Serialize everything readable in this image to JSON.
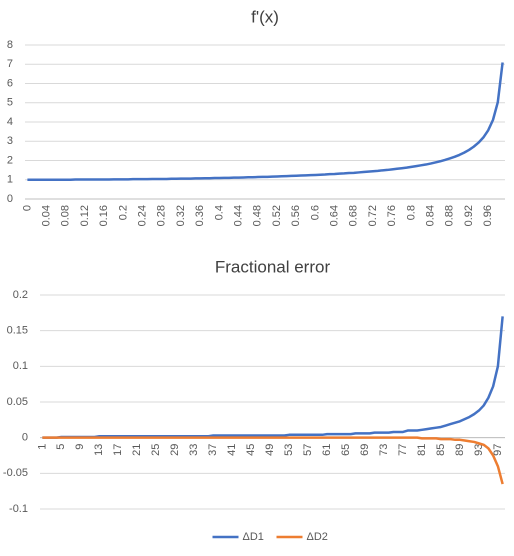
{
  "chart_data": [
    {
      "type": "line",
      "title": "f'(x)",
      "categories": [
        "0",
        null,
        null,
        null,
        "0.04",
        null,
        null,
        null,
        "0.08",
        null,
        null,
        null,
        "0.12",
        null,
        null,
        null,
        "0.16",
        null,
        null,
        null,
        "0.2",
        null,
        null,
        null,
        "0.24",
        null,
        null,
        null,
        "0.28",
        null,
        null,
        null,
        "0.32",
        null,
        null,
        null,
        "0.36",
        null,
        null,
        null,
        "0.4",
        null,
        null,
        null,
        "0.44",
        null,
        null,
        null,
        "0.48",
        null,
        null,
        null,
        "0.52",
        null,
        null,
        null,
        "0.56",
        null,
        null,
        null,
        "0.6",
        null,
        null,
        null,
        "0.64",
        null,
        null,
        null,
        "0.68",
        null,
        null,
        null,
        "0.72",
        null,
        null,
        null,
        "0.76",
        null,
        null,
        null,
        "0.8",
        null,
        null,
        null,
        "0.84",
        null,
        null,
        null,
        "0.88",
        null,
        null,
        null,
        "0.92",
        null,
        null,
        null,
        "0.96",
        null,
        null,
        null
      ],
      "values": [
        1.0,
        1.0,
        1.0,
        1.0,
        1.0,
        1.0,
        1.0,
        1.0,
        1.0,
        1.0,
        1.01,
        1.01,
        1.01,
        1.01,
        1.01,
        1.01,
        1.01,
        1.01,
        1.02,
        1.02,
        1.02,
        1.02,
        1.03,
        1.03,
        1.03,
        1.03,
        1.04,
        1.04,
        1.04,
        1.04,
        1.05,
        1.05,
        1.06,
        1.06,
        1.06,
        1.07,
        1.07,
        1.08,
        1.08,
        1.09,
        1.09,
        1.1,
        1.1,
        1.11,
        1.11,
        1.12,
        1.13,
        1.13,
        1.14,
        1.15,
        1.15,
        1.16,
        1.17,
        1.18,
        1.19,
        1.2,
        1.21,
        1.22,
        1.23,
        1.24,
        1.25,
        1.26,
        1.27,
        1.29,
        1.3,
        1.32,
        1.33,
        1.35,
        1.36,
        1.38,
        1.4,
        1.42,
        1.44,
        1.46,
        1.49,
        1.51,
        1.54,
        1.57,
        1.6,
        1.63,
        1.67,
        1.71,
        1.75,
        1.79,
        1.84,
        1.9,
        1.96,
        2.03,
        2.11,
        2.19,
        2.29,
        2.41,
        2.55,
        2.72,
        2.93,
        3.2,
        3.57,
        4.11,
        5.03,
        7.09
      ],
      "color": "#4472c4",
      "ylim": [
        0,
        8
      ],
      "yticks": [
        0,
        1,
        2,
        3,
        4,
        5,
        6,
        7,
        8
      ],
      "grid": true
    },
    {
      "type": "line",
      "title": "Fractional error",
      "categories": [
        "1",
        null,
        null,
        null,
        "5",
        null,
        null,
        null,
        "9",
        null,
        null,
        null,
        "13",
        null,
        null,
        null,
        "17",
        null,
        null,
        null,
        "21",
        null,
        null,
        null,
        "25",
        null,
        null,
        null,
        "29",
        null,
        null,
        null,
        "33",
        null,
        null,
        null,
        "37",
        null,
        null,
        null,
        "41",
        null,
        null,
        null,
        "45",
        null,
        null,
        null,
        "49",
        null,
        null,
        null,
        "53",
        null,
        null,
        null,
        "57",
        null,
        null,
        null,
        "61",
        null,
        null,
        null,
        "65",
        null,
        null,
        null,
        "69",
        null,
        null,
        null,
        "73",
        null,
        null,
        null,
        "77",
        null,
        null,
        null,
        "81",
        null,
        null,
        null,
        "85",
        null,
        null,
        null,
        "89",
        null,
        null,
        null,
        "93",
        null,
        null,
        null,
        "97",
        null
      ],
      "series": [
        {
          "name": "ΔD1",
          "color": "#4472c4",
          "values": [
            0,
            0,
            0,
            0,
            0.001,
            0.001,
            0.001,
            0.001,
            0.001,
            0.001,
            0.001,
            0.001,
            0.002,
            0.002,
            0.002,
            0.002,
            0.002,
            0.002,
            0.002,
            0.002,
            0.002,
            0.002,
            0.002,
            0.002,
            0.002,
            0.002,
            0.002,
            0.002,
            0.002,
            0.002,
            0.002,
            0.002,
            0.002,
            0.002,
            0.002,
            0.002,
            0.003,
            0.003,
            0.003,
            0.003,
            0.003,
            0.003,
            0.003,
            0.003,
            0.003,
            0.003,
            0.003,
            0.003,
            0.003,
            0.003,
            0.003,
            0.003,
            0.004,
            0.004,
            0.004,
            0.004,
            0.004,
            0.004,
            0.004,
            0.004,
            0.005,
            0.005,
            0.005,
            0.005,
            0.005,
            0.005,
            0.006,
            0.006,
            0.006,
            0.006,
            0.007,
            0.007,
            0.007,
            0.007,
            0.008,
            0.008,
            0.008,
            0.01,
            0.01,
            0.01,
            0.011,
            0.012,
            0.013,
            0.014,
            0.015,
            0.017,
            0.019,
            0.021,
            0.023,
            0.026,
            0.029,
            0.033,
            0.038,
            0.045,
            0.056,
            0.072,
            0.1,
            0.17
          ]
        },
        {
          "name": "ΔD2",
          "color": "#ed7d31",
          "values": [
            0,
            0,
            0,
            0,
            0,
            0,
            0,
            0,
            0,
            0,
            0,
            0,
            0,
            0,
            0,
            0,
            0,
            0,
            0,
            0,
            0,
            0,
            0,
            0,
            0,
            0,
            0,
            0,
            0,
            0,
            0,
            0,
            0,
            0,
            0,
            0,
            0,
            0,
            0,
            0,
            0,
            0,
            0,
            0,
            0,
            0,
            0,
            0,
            0,
            0,
            0,
            0,
            0,
            0,
            0,
            0,
            0,
            0,
            0,
            0,
            0,
            0,
            0,
            0,
            0,
            0,
            0,
            0,
            0,
            0,
            0,
            0,
            0,
            0,
            0,
            0,
            0,
            0,
            0,
            0,
            -0.001,
            -0.001,
            -0.001,
            -0.001,
            -0.002,
            -0.002,
            -0.002,
            -0.003,
            -0.003,
            -0.004,
            -0.005,
            -0.006,
            -0.008,
            -0.01,
            -0.015,
            -0.025,
            -0.04,
            -0.065
          ]
        }
      ],
      "ylim": [
        -0.1,
        0.2
      ],
      "yticks": [
        -0.1,
        -0.05,
        0,
        0.05,
        0.1,
        0.15,
        0.2
      ],
      "grid": true,
      "legend": "bottom"
    }
  ]
}
